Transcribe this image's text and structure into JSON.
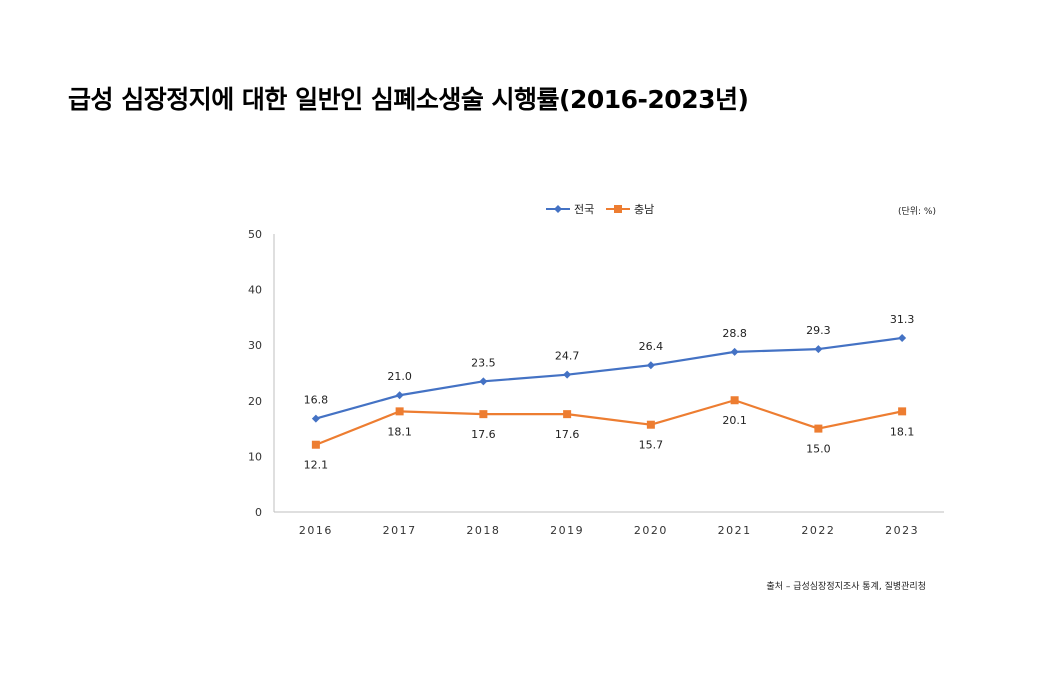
{
  "title": "급성 심장정지에 대한 일반인 심폐소생술 시행률(2016-2023년)",
  "unit": "(단위: %)",
  "source": "출처 – 급성심장정지조사 통계, 질병관리청",
  "chart_data": {
    "type": "line",
    "x": [
      "2016",
      "2017",
      "2018",
      "2019",
      "2020",
      "2021",
      "2022",
      "2023"
    ],
    "ylim": [
      0,
      50
    ],
    "yticks": [
      "0",
      "10",
      "20",
      "30",
      "40",
      "50"
    ],
    "grid": false,
    "legend": "top",
    "series": [
      {
        "name": "전국",
        "color": "#4472C4",
        "marker": "diamond",
        "values": [
          16.8,
          21.0,
          23.5,
          24.7,
          26.4,
          28.8,
          29.3,
          31.3
        ],
        "labels": [
          "16.8",
          "21.0",
          "23.5",
          "24.7",
          "26.4",
          "28.8",
          "29.3",
          "31.3"
        ]
      },
      {
        "name": "충남",
        "color": "#ED7D31",
        "marker": "square",
        "values": [
          12.1,
          18.1,
          17.6,
          17.6,
          15.7,
          20.1,
          15.0,
          18.1
        ],
        "labels": [
          "12.1",
          "18.1",
          "17.6",
          "17.6",
          "15.7",
          "20.1",
          "15.0",
          "18.1"
        ]
      }
    ]
  }
}
